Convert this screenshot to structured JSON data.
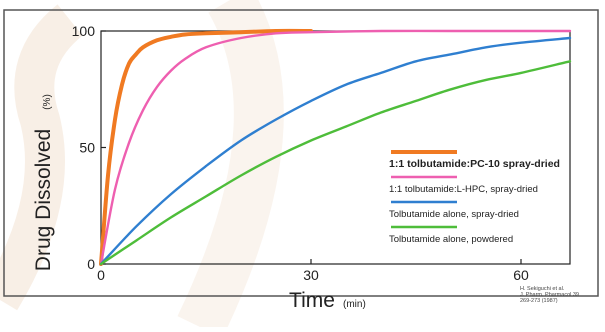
{
  "chart_data": {
    "type": "line",
    "title": "",
    "xlabel": "Time",
    "xlabel_unit": "(min)",
    "ylabel": "Drug Dissolved",
    "ylabel_unit": "(%)",
    "xlim": [
      0,
      67
    ],
    "ylim": [
      0,
      100
    ],
    "x_ticks": [
      0,
      30,
      60
    ],
    "x_tick_labels": [
      "0",
      "30",
      "60"
    ],
    "y_ticks": [
      0,
      50,
      100
    ],
    "y_tick_labels": [
      "0",
      "50",
      "100"
    ],
    "grid": false,
    "legend_position": "bottom-right",
    "series": [
      {
        "name": "1:1 tolbutamide:PC-10 spray-dried",
        "color": "#f07a22",
        "x": [
          0,
          1,
          2,
          3,
          4,
          5,
          6,
          8,
          10,
          12,
          15,
          20,
          25,
          30
        ],
        "y": [
          0,
          38,
          62,
          77,
          86,
          90,
          93,
          96,
          97.5,
          98.5,
          99,
          99.5,
          100,
          100
        ]
      },
      {
        "name": "1:1 tolbutamide:L-HPC, spray-dried",
        "color": "#ee5fb0",
        "x": [
          0,
          2,
          4,
          6,
          8,
          10,
          12,
          15,
          20,
          25,
          30,
          40,
          50,
          60,
          67
        ],
        "y": [
          0,
          32,
          52,
          66,
          76,
          83,
          88,
          93,
          97,
          99,
          99.5,
          100,
          100,
          100,
          100
        ]
      },
      {
        "name": "Tolbutamide alone, spray-dried",
        "color": "#2f7fd0",
        "x": [
          0,
          5,
          10,
          15,
          20,
          25,
          30,
          35,
          40,
          45,
          50,
          55,
          60,
          67
        ],
        "y": [
          0,
          16,
          30,
          42,
          53,
          62,
          70,
          77,
          82,
          87,
          90,
          93,
          95,
          97
        ]
      },
      {
        "name": "Tolbutamide alone, powdered",
        "color": "#4ebd3a",
        "x": [
          0,
          5,
          10,
          15,
          20,
          25,
          30,
          35,
          40,
          45,
          50,
          55,
          60,
          67
        ],
        "y": [
          0,
          10,
          20,
          29,
          38,
          46,
          53,
          59,
          65,
          70,
          75,
          79,
          82,
          87
        ]
      }
    ],
    "source_note": [
      "H. Sekiguchi et al.",
      "J. Pharm. Pharmacol 39",
      "269-273 (1987)"
    ]
  }
}
